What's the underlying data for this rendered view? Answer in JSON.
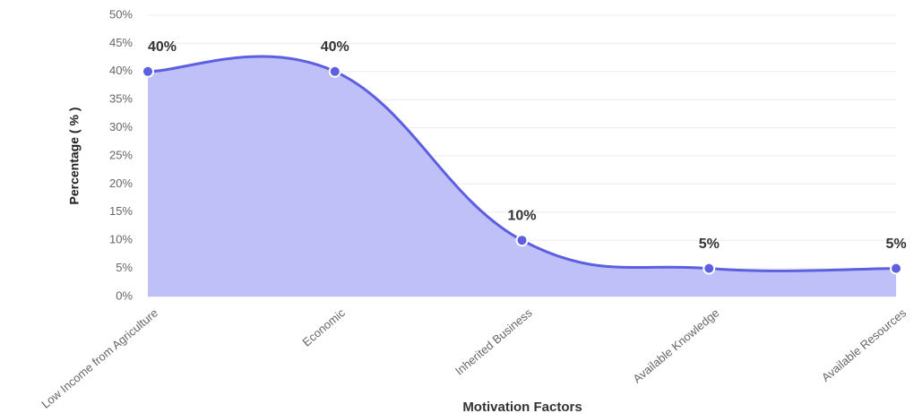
{
  "chart_data": {
    "type": "area",
    "categories": [
      "Low Income from Agriculture",
      "Economic",
      "Inherited Business",
      "Available Knowledge",
      "Available Resources"
    ],
    "series": [
      {
        "name": "Percentage (%)",
        "color": "#5b5fe0",
        "fill": "#bfc0f7",
        "values": [
          40,
          40,
          10,
          5,
          5
        ],
        "value_labels": [
          "40%",
          "40%",
          "10%",
          "5%",
          "5%"
        ]
      }
    ],
    "ylim": [
      0,
      50
    ],
    "yticks": [
      {
        "value": 0,
        "label": "0%"
      },
      {
        "value": 5,
        "label": "5%"
      },
      {
        "value": 10,
        "label": "10%"
      },
      {
        "value": 15,
        "label": "15%"
      },
      {
        "value": 20,
        "label": "20%"
      },
      {
        "value": 25,
        "label": "25%"
      },
      {
        "value": 30,
        "label": "30%"
      },
      {
        "value": 35,
        "label": "35%"
      },
      {
        "value": 40,
        "label": "40%"
      },
      {
        "value": 45,
        "label": "45%"
      },
      {
        "value": 50,
        "label": "50%"
      }
    ],
    "ylabel": "Percentage ( % )",
    "xlabel": "Motivation Factors",
    "grid": true
  }
}
